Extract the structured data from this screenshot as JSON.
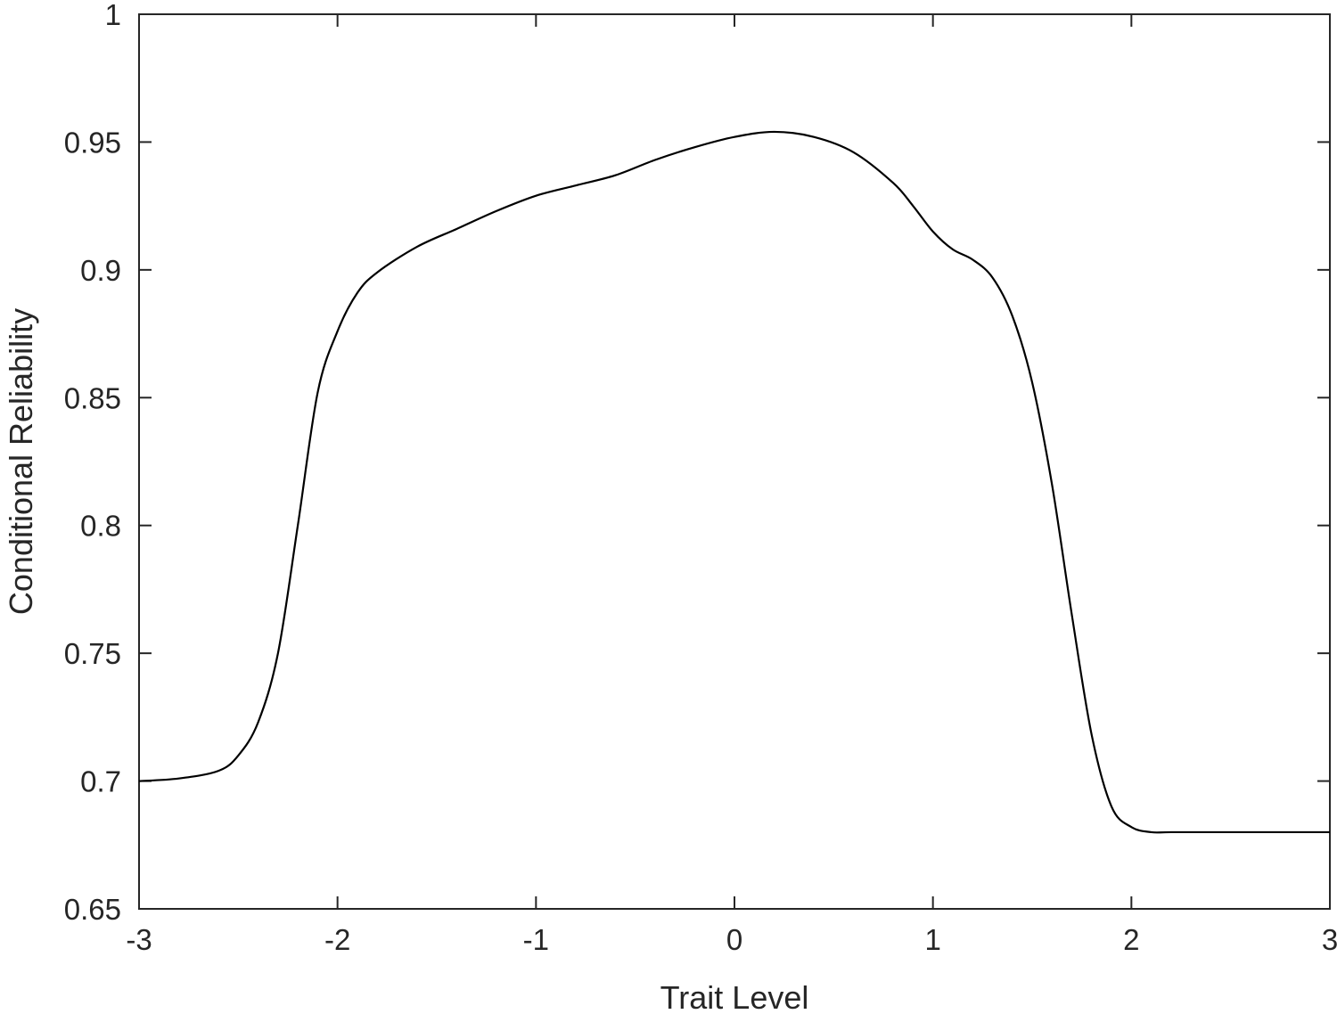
{
  "chart_data": {
    "type": "line",
    "title": "",
    "xlabel": "Trait Level",
    "ylabel": "Conditional Reliability",
    "xlim": [
      -3,
      3
    ],
    "ylim": [
      0.65,
      1
    ],
    "xticks": [
      -3,
      -2,
      -1,
      0,
      1,
      2,
      3
    ],
    "xtick_labels": [
      "-3",
      "-2",
      "-1",
      "0",
      "1",
      "2",
      "3"
    ],
    "yticks": [
      0.65,
      0.7,
      0.75,
      0.8,
      0.85,
      0.9,
      0.95,
      1
    ],
    "ytick_labels": [
      "0.65",
      "0.7",
      "0.75",
      "0.8",
      "0.85",
      "0.9",
      "0.95",
      "1"
    ],
    "grid": false,
    "line_color": "#000000",
    "series": [
      {
        "x": [
          -3,
          -2.8,
          -2.6,
          -2.5,
          -2.4,
          -2.3,
          -2.2,
          -2.1,
          -2.0,
          -1.9,
          -1.8,
          -1.6,
          -1.4,
          -1.2,
          -1.0,
          -0.8,
          -0.6,
          -0.4,
          -0.2,
          0.0,
          0.2,
          0.4,
          0.6,
          0.8,
          0.9,
          1.0,
          1.1,
          1.2,
          1.3,
          1.4,
          1.5,
          1.6,
          1.7,
          1.8,
          1.9,
          2.0,
          2.1,
          2.2,
          2.5,
          3.0
        ],
        "y": [
          0.7,
          0.701,
          0.704,
          0.71,
          0.723,
          0.75,
          0.8,
          0.852,
          0.876,
          0.891,
          0.899,
          0.909,
          0.916,
          0.923,
          0.929,
          0.933,
          0.937,
          0.943,
          0.948,
          0.952,
          0.954,
          0.952,
          0.946,
          0.934,
          0.925,
          0.915,
          0.908,
          0.904,
          0.897,
          0.882,
          0.856,
          0.816,
          0.765,
          0.718,
          0.69,
          0.682,
          0.68,
          0.68,
          0.68,
          0.68
        ]
      }
    ]
  }
}
